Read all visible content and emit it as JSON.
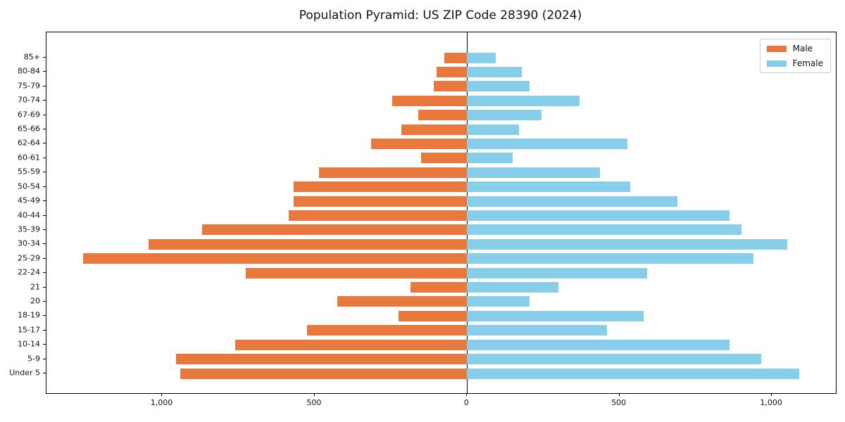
{
  "title": "Population Pyramid: US ZIP Code 28390 (2024)",
  "legend": {
    "male_label": "Male",
    "female_label": "Female"
  },
  "colors": {
    "male": "#e8783c",
    "female": "#87ceeb",
    "zero_line": "#000000",
    "axis": "#000000",
    "legend_border": "#cccccc",
    "background": "#ffffff"
  },
  "chart_data": {
    "type": "bar",
    "variant": "population-pyramid",
    "orientation": "horizontal",
    "title": "Population Pyramid: US ZIP Code 28390 (2024)",
    "categories_top_to_bottom": [
      "85+",
      "80-84",
      "75-79",
      "70-74",
      "67-69",
      "65-66",
      "62-64",
      "60-61",
      "55-59",
      "50-54",
      "45-49",
      "40-44",
      "35-39",
      "30-34",
      "25-29",
      "22-24",
      "21",
      "20",
      "18-19",
      "15-17",
      "10-14",
      "5-9",
      "Under 5"
    ],
    "series": [
      {
        "name": "Male",
        "side": "left",
        "color": "#e8783c",
        "values_top_to_bottom": [
          75,
          100,
          110,
          245,
          160,
          215,
          315,
          150,
          485,
          570,
          570,
          585,
          870,
          1045,
          1260,
          725,
          185,
          425,
          225,
          525,
          760,
          955,
          940
        ]
      },
      {
        "name": "Female",
        "side": "right",
        "color": "#87ceeb",
        "values_top_to_bottom": [
          95,
          180,
          205,
          370,
          245,
          170,
          525,
          150,
          435,
          535,
          690,
          860,
          900,
          1050,
          940,
          590,
          300,
          205,
          580,
          460,
          860,
          965,
          1090
        ]
      }
    ],
    "xlim": [
      -1380,
      1210
    ],
    "x_ticks": [
      {
        "value": -1000,
        "label": "1,000"
      },
      {
        "value": -500,
        "label": "500"
      },
      {
        "value": 0,
        "label": "0"
      },
      {
        "value": 500,
        "label": "500"
      },
      {
        "value": 1000,
        "label": "1,000"
      }
    ],
    "grid": false,
    "legend_position": "upper-right-inside",
    "legend_entries": [
      "Male",
      "Female"
    ]
  }
}
